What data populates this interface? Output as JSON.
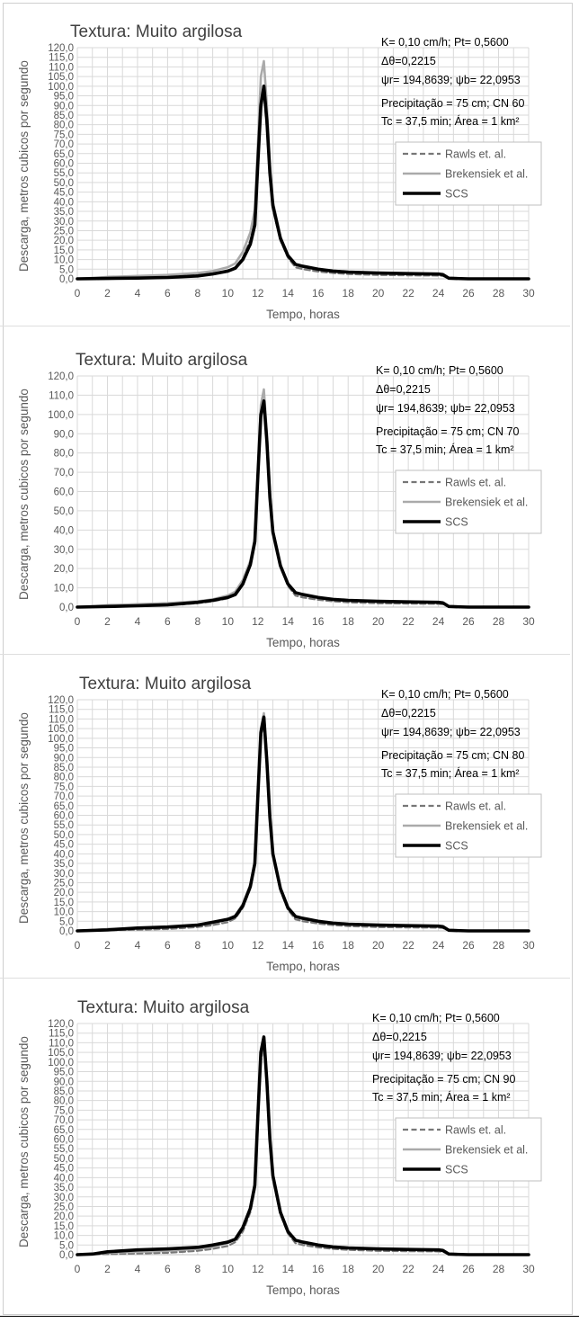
{
  "colors": {
    "rawls": "#777777",
    "brekensiek": "#aaaaaa",
    "scs": "#000000",
    "grid": "#d9d9d9",
    "text": "#595959",
    "title": "#404040"
  },
  "chart_data": [
    {
      "type": "line",
      "title": "Textura: Muito argilosa",
      "xlabel": "Tempo, horas",
      "ylabel": "Descarga, metros cubicos por segundo",
      "xlim": [
        0,
        30
      ],
      "ylim": [
        0,
        120
      ],
      "xticks": [
        "0",
        "2",
        "4",
        "6",
        "8",
        "10",
        "12",
        "14",
        "16",
        "18",
        "20",
        "22",
        "24",
        "26",
        "28",
        "30"
      ],
      "yticks": [
        "0,0",
        "5,0",
        "10,0",
        "15,0",
        "20,0",
        "25,0",
        "30,0",
        "35,0",
        "40,0",
        "45,0",
        "50,0",
        "55,0",
        "60,0",
        "65,0",
        "70,0",
        "75,0",
        "80,0",
        "85,0",
        "90,0",
        "95,0",
        "100,0",
        "105,0",
        "110,0",
        "115,0",
        "120,0"
      ],
      "annotations": [
        "K= 0,10 cm/h; Pt= 0,5600",
        "Δθ=0,2215",
        "ψr= 194,8639;  ψb= 22,0953",
        "Precipitação = 75 cm; CN 60",
        "Tc = 37,5 min; Área = 1 km²"
      ],
      "grid": true,
      "legend_position": "right",
      "series": [
        {
          "name": "Rawls et. al.",
          "style": "dashed",
          "x": [
            0,
            2,
            4,
            6,
            8,
            9,
            10,
            10.5,
            11,
            11.5,
            11.8,
            12,
            12.2,
            12.4,
            12.6,
            12.8,
            13,
            13.5,
            14,
            14.5,
            15,
            16,
            17,
            18,
            20,
            22,
            24,
            24.3,
            24.7,
            26,
            28,
            30
          ],
          "y": [
            0,
            0.3,
            0.6,
            1,
            2,
            2.8,
            4,
            6,
            11,
            20,
            30,
            58,
            88,
            97,
            78,
            52,
            36,
            20,
            11,
            6,
            5,
            3.8,
            3,
            2.5,
            2,
            1.8,
            1.7,
            1.5,
            0.3,
            0,
            0,
            0
          ]
        },
        {
          "name": "Brekensiek et al.",
          "style": "solid",
          "x": [
            0,
            2,
            4,
            6,
            8,
            9,
            10,
            10.5,
            11,
            11.5,
            11.8,
            12,
            12.2,
            12.4,
            12.6,
            12.8,
            13,
            13.5,
            14,
            14.5,
            15,
            16,
            17,
            18,
            20,
            22,
            24,
            24.3,
            24.7,
            26,
            28,
            30
          ],
          "y": [
            0,
            1,
            1.5,
            2,
            3,
            4,
            6,
            8,
            14,
            24,
            36,
            70,
            105,
            113,
            90,
            60,
            40,
            22,
            12,
            7.5,
            6.5,
            5,
            4,
            3.5,
            3,
            2.7,
            2.5,
            2.2,
            0.3,
            0,
            0,
            0
          ]
        },
        {
          "name": "SCS",
          "style": "solid",
          "x": [
            0,
            2,
            4,
            6,
            8,
            9,
            10,
            10.5,
            11,
            11.5,
            11.8,
            12,
            12.2,
            12.4,
            12.6,
            12.8,
            13,
            13.5,
            14,
            14.5,
            15,
            16,
            17,
            18,
            20,
            22,
            24,
            24.3,
            24.7,
            26,
            28,
            30
          ],
          "y": [
            0,
            0.2,
            0.4,
            0.7,
            1.5,
            2.5,
            4,
            5.5,
            10,
            18,
            28,
            60,
            90,
            100,
            82,
            55,
            38,
            21,
            12,
            7.5,
            6.5,
            5,
            4,
            3.5,
            3,
            2.7,
            2.5,
            2.2,
            0.3,
            0,
            0,
            0
          ]
        }
      ]
    },
    {
      "type": "line",
      "title": "Textura: Muito argilosa",
      "xlabel": "Tempo, horas",
      "ylabel": "Descarga, metros cubicos por segundo",
      "xlim": [
        0,
        30
      ],
      "ylim": [
        0,
        120
      ],
      "xticks": [
        "0",
        "2",
        "4",
        "6",
        "8",
        "10",
        "12",
        "14",
        "16",
        "18",
        "20",
        "22",
        "24",
        "26",
        "28",
        "30"
      ],
      "yticks": [
        "0,0",
        "10,0",
        "20,0",
        "30,0",
        "40,0",
        "50,0",
        "60,0",
        "70,0",
        "80,0",
        "90,0",
        "100,0",
        "110,0",
        "120,0"
      ],
      "annotations": [
        "K= 0,10 cm/h; Pt= 0,5600",
        "Δθ=0,2215",
        "ψr= 194,8639;  ψb= 22,0953",
        "Precipitação = 75 cm; CN 70",
        "Tc = 37,5 min; Área = 1 km²"
      ],
      "grid": true,
      "legend_position": "right",
      "series": [
        {
          "name": "Rawls et. al.",
          "style": "dashed",
          "x": [
            0,
            2,
            4,
            6,
            8,
            9,
            10,
            10.5,
            11,
            11.5,
            11.8,
            12,
            12.2,
            12.4,
            12.6,
            12.8,
            13,
            13.5,
            14,
            14.5,
            15,
            16,
            17,
            18,
            20,
            22,
            24,
            24.3,
            24.7,
            26,
            28,
            30
          ],
          "y": [
            0,
            0.3,
            0.6,
            1,
            2,
            3,
            4.5,
            6.5,
            12,
            22,
            34,
            66,
            98,
            105,
            84,
            56,
            38,
            21,
            11,
            6,
            5,
            3.8,
            3,
            2.5,
            2,
            1.8,
            1.7,
            1.5,
            0.3,
            0,
            0,
            0
          ]
        },
        {
          "name": "Brekensiek et al.",
          "style": "solid",
          "x": [
            0,
            2,
            4,
            6,
            8,
            9,
            10,
            10.5,
            11,
            11.5,
            11.8,
            12,
            12.2,
            12.4,
            12.6,
            12.8,
            13,
            13.5,
            14,
            14.5,
            15,
            16,
            17,
            18,
            20,
            22,
            24,
            24.3,
            24.7,
            26,
            28,
            30
          ],
          "y": [
            0,
            1,
            1.5,
            2,
            3,
            4,
            6,
            8,
            14,
            24,
            36,
            70,
            105,
            113,
            90,
            60,
            40,
            22,
            12,
            7.5,
            6.5,
            5,
            4,
            3.5,
            3,
            2.7,
            2.5,
            2.2,
            0.3,
            0,
            0,
            0
          ]
        },
        {
          "name": "SCS",
          "style": "solid",
          "x": [
            0,
            2,
            4,
            6,
            8,
            9,
            10,
            10.5,
            11,
            11.5,
            11.8,
            12,
            12.2,
            12.4,
            12.6,
            12.8,
            13,
            13.5,
            14,
            14.5,
            15,
            16,
            17,
            18,
            20,
            22,
            24,
            24.3,
            24.7,
            26,
            28,
            30
          ],
          "y": [
            0,
            0.3,
            0.7,
            1.2,
            2.5,
            3.5,
            5,
            6.5,
            12,
            22,
            34,
            68,
            100,
            107,
            86,
            57,
            39,
            21.5,
            12,
            7.5,
            6.5,
            5,
            4,
            3.5,
            3,
            2.7,
            2.5,
            2.2,
            0.3,
            0,
            0,
            0
          ]
        }
      ]
    },
    {
      "type": "line",
      "title": "Textura: Muito argilosa",
      "xlabel": "Tempo, horas",
      "ylabel": "Descarga, metros cubicos por segundo",
      "xlim": [
        0,
        30
      ],
      "ylim": [
        0,
        120
      ],
      "xticks": [
        "0",
        "2",
        "4",
        "6",
        "8",
        "10",
        "12",
        "14",
        "16",
        "18",
        "20",
        "22",
        "24",
        "26",
        "28",
        "30"
      ],
      "yticks": [
        "0,0",
        "5,0",
        "10,0",
        "15,0",
        "20,0",
        "25,0",
        "30,0",
        "35,0",
        "40,0",
        "45,0",
        "50,0",
        "55,0",
        "60,0",
        "65,0",
        "70,0",
        "75,0",
        "80,0",
        "85,0",
        "90,0",
        "95,0",
        "100,0",
        "105,0",
        "110,0",
        "115,0",
        "120,0"
      ],
      "annotations": [
        "K= 0,10 cm/h; Pt= 0,5600",
        "Δθ=0,2215",
        "ψr= 194,8639;  ψb= 22,0953",
        "Precipitação = 75 cm; CN 80",
        "Tc = 37,5 min; Área = 1 km²"
      ],
      "grid": true,
      "legend_position": "right",
      "series": [
        {
          "name": "Rawls et. al.",
          "style": "dashed",
          "x": [
            0,
            2,
            4,
            6,
            8,
            9,
            10,
            10.5,
            11,
            11.5,
            11.8,
            12,
            12.2,
            12.4,
            12.6,
            12.8,
            13,
            13.5,
            14,
            14.5,
            15,
            16,
            17,
            18,
            20,
            22,
            24,
            24.3,
            24.7,
            26,
            28,
            30
          ],
          "y": [
            0,
            0.3,
            0.6,
            1,
            2,
            3,
            4.5,
            6.5,
            12,
            22,
            34,
            68,
            100,
            109,
            86,
            57,
            39,
            21,
            11,
            6,
            5,
            3.8,
            3,
            2.5,
            2,
            1.8,
            1.7,
            1.5,
            0.3,
            0,
            0,
            0
          ]
        },
        {
          "name": "Brekensiek et al.",
          "style": "solid",
          "x": [
            0,
            2,
            4,
            6,
            8,
            9,
            10,
            10.5,
            11,
            11.5,
            11.8,
            12,
            12.2,
            12.4,
            12.6,
            12.8,
            13,
            13.5,
            14,
            14.5,
            15,
            16,
            17,
            18,
            20,
            22,
            24,
            24.3,
            24.7,
            26,
            28,
            30
          ],
          "y": [
            0,
            1,
            1.5,
            2,
            3,
            4,
            6,
            8,
            14,
            24,
            36,
            70,
            105,
            113,
            90,
            60,
            40,
            22,
            12,
            7.5,
            6.5,
            5,
            4,
            3.5,
            3,
            2.7,
            2.5,
            2.2,
            0.3,
            0,
            0,
            0
          ]
        },
        {
          "name": "SCS",
          "style": "solid",
          "x": [
            0,
            2,
            4,
            6,
            8,
            9,
            10,
            10.5,
            11,
            11.5,
            11.8,
            12,
            12.2,
            12.4,
            12.6,
            12.8,
            13,
            13.5,
            14,
            14.5,
            15,
            16,
            17,
            18,
            20,
            22,
            24,
            24.3,
            24.7,
            26,
            28,
            30
          ],
          "y": [
            0,
            0.5,
            1.5,
            2,
            3,
            4.5,
            6,
            7.5,
            13,
            23,
            35,
            70,
            103,
            111,
            88,
            59,
            40,
            22,
            12,
            7.5,
            6.5,
            5,
            4,
            3.5,
            3,
            2.7,
            2.5,
            2.2,
            0.3,
            0,
            0,
            0
          ]
        }
      ]
    },
    {
      "type": "line",
      "title": "Textura: Muito argilosa",
      "xlabel": "Tempo, horas",
      "ylabel": "Descarga, metros cubicos por segundo",
      "xlim": [
        0,
        30
      ],
      "ylim": [
        0,
        120
      ],
      "xticks": [
        "0",
        "2",
        "4",
        "6",
        "8",
        "10",
        "12",
        "14",
        "16",
        "18",
        "20",
        "22",
        "24",
        "26",
        "28",
        "30"
      ],
      "yticks": [
        "0,0",
        "5,0",
        "10,0",
        "15,0",
        "20,0",
        "25,0",
        "30,0",
        "35,0",
        "40,0",
        "45,0",
        "50,0",
        "55,0",
        "60,0",
        "65,0",
        "70,0",
        "75,0",
        "80,0",
        "85,0",
        "90,0",
        "95,0",
        "100,0",
        "105,0",
        "110,0",
        "115,0",
        "120,0"
      ],
      "annotations": [
        "K= 0,10 cm/h; Pt= 0,5600",
        "Δθ=0,2215",
        "ψr= 194,8639;  ψb= 22,0953",
        "Precipitação = 75 cm; CN 90",
        "Tc = 37,5 min; Área = 1 km²"
      ],
      "grid": true,
      "legend_position": "right",
      "series": [
        {
          "name": "Rawls et. al.",
          "style": "dashed",
          "x": [
            0,
            2,
            4,
            6,
            8,
            9,
            10,
            10.5,
            11,
            11.5,
            11.8,
            12,
            12.2,
            12.4,
            12.6,
            12.8,
            13,
            13.5,
            14,
            14.5,
            15,
            16,
            17,
            18,
            20,
            22,
            24,
            24.3,
            24.7,
            26,
            28,
            30
          ],
          "y": [
            0,
            0.3,
            0.6,
            1,
            2,
            3,
            4.5,
            6.5,
            12,
            22,
            34,
            68,
            100,
            110,
            87,
            58,
            39,
            21,
            11,
            6,
            5,
            3.8,
            3,
            2.5,
            2,
            1.8,
            1.7,
            1.5,
            0.3,
            0,
            0,
            0
          ]
        },
        {
          "name": "Brekensiek et al.",
          "style": "solid",
          "x": [
            0,
            2,
            4,
            6,
            8,
            9,
            10,
            10.5,
            11,
            11.5,
            11.8,
            12,
            12.2,
            12.4,
            12.6,
            12.8,
            13,
            13.5,
            14,
            14.5,
            15,
            16,
            17,
            18,
            20,
            22,
            24,
            24.3,
            24.7,
            26,
            28,
            30
          ],
          "y": [
            0,
            1,
            1.5,
            2,
            3,
            4,
            6,
            8,
            14,
            24,
            36,
            70,
            105,
            113,
            90,
            60,
            40,
            22,
            12,
            7.5,
            6.5,
            5,
            4,
            3.5,
            3,
            2.7,
            2.5,
            2.2,
            0.3,
            0,
            0,
            0
          ]
        },
        {
          "name": "SCS",
          "style": "solid",
          "x": [
            0,
            1,
            2,
            4,
            6,
            8,
            9,
            10,
            10.5,
            11,
            11.5,
            11.8,
            12,
            12.2,
            12.4,
            12.6,
            12.8,
            13,
            13.5,
            14,
            14.5,
            15,
            16,
            17,
            18,
            20,
            22,
            24,
            24.3,
            24.7,
            26,
            28,
            30
          ],
          "y": [
            0,
            0.3,
            1.5,
            2.5,
            3,
            3.8,
            5,
            6.5,
            8,
            14,
            24,
            36,
            72,
            105,
            113,
            90,
            60,
            41,
            22,
            12,
            7.5,
            6.5,
            5,
            4,
            3.5,
            3,
            2.7,
            2.5,
            2.2,
            0.3,
            0,
            0,
            0
          ]
        }
      ]
    }
  ]
}
